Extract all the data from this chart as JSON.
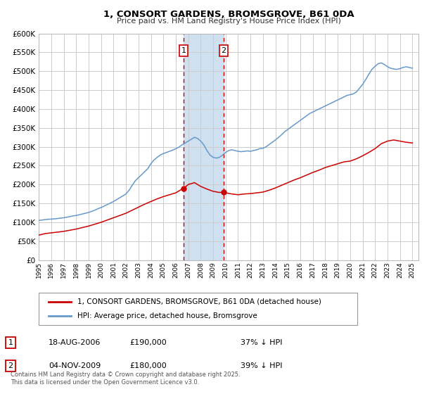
{
  "title": "1, CONSORT GARDENS, BROMSGROVE, B61 0DA",
  "subtitle": "Price paid vs. HM Land Registry's House Price Index (HPI)",
  "legend_label_red": "1, CONSORT GARDENS, BROMSGROVE, B61 0DA (detached house)",
  "legend_label_blue": "HPI: Average price, detached house, Bromsgrove",
  "marker1_date_label": "18-AUG-2006",
  "marker1_price": 190000,
  "marker1_pct": "37% ↓ HPI",
  "marker2_date_label": "04-NOV-2009",
  "marker2_price": 180000,
  "marker2_pct": "39% ↓ HPI",
  "marker1_year": 2006.63,
  "marker2_year": 2009.84,
  "ylim_max": 600000,
  "ylim_min": 0,
  "xlim_min": 1995,
  "xlim_max": 2025.5,
  "red_color": "#cc0000",
  "blue_color": "#6699cc",
  "shade_color": "#cfe0f0",
  "grid_color": "#cccccc",
  "footer_text": "Contains HM Land Registry data © Crown copyright and database right 2025.\nThis data is licensed under the Open Government Licence v3.0.",
  "hpi_data": [
    [
      1995.0,
      105000
    ],
    [
      1995.25,
      106000
    ],
    [
      1995.5,
      107000
    ],
    [
      1995.75,
      108000
    ],
    [
      1996.0,
      108500
    ],
    [
      1996.25,
      109000
    ],
    [
      1996.5,
      110000
    ],
    [
      1996.75,
      111000
    ],
    [
      1997.0,
      112000
    ],
    [
      1997.25,
      113500
    ],
    [
      1997.5,
      115000
    ],
    [
      1997.75,
      117000
    ],
    [
      1998.0,
      118000
    ],
    [
      1998.25,
      120000
    ],
    [
      1998.5,
      122000
    ],
    [
      1998.75,
      124000
    ],
    [
      1999.0,
      126000
    ],
    [
      1999.25,
      129000
    ],
    [
      1999.5,
      132000
    ],
    [
      1999.75,
      136000
    ],
    [
      2000.0,
      139000
    ],
    [
      2000.25,
      143000
    ],
    [
      2000.5,
      147000
    ],
    [
      2000.75,
      151000
    ],
    [
      2001.0,
      155000
    ],
    [
      2001.25,
      160000
    ],
    [
      2001.5,
      165000
    ],
    [
      2001.75,
      170000
    ],
    [
      2002.0,
      175000
    ],
    [
      2002.25,
      185000
    ],
    [
      2002.5,
      198000
    ],
    [
      2002.75,
      210000
    ],
    [
      2003.0,
      218000
    ],
    [
      2003.25,
      226000
    ],
    [
      2003.5,
      234000
    ],
    [
      2003.75,
      242000
    ],
    [
      2004.0,
      255000
    ],
    [
      2004.25,
      265000
    ],
    [
      2004.5,
      272000
    ],
    [
      2004.75,
      278000
    ],
    [
      2005.0,
      282000
    ],
    [
      2005.25,
      285000
    ],
    [
      2005.5,
      288000
    ],
    [
      2005.75,
      291000
    ],
    [
      2006.0,
      295000
    ],
    [
      2006.25,
      299000
    ],
    [
      2006.5,
      305000
    ],
    [
      2006.75,
      310000
    ],
    [
      2007.0,
      315000
    ],
    [
      2007.25,
      320000
    ],
    [
      2007.5,
      325000
    ],
    [
      2007.75,
      322000
    ],
    [
      2008.0,
      315000
    ],
    [
      2008.25,
      305000
    ],
    [
      2008.5,
      290000
    ],
    [
      2008.75,
      278000
    ],
    [
      2009.0,
      272000
    ],
    [
      2009.25,
      270000
    ],
    [
      2009.5,
      272000
    ],
    [
      2009.75,
      278000
    ],
    [
      2010.0,
      285000
    ],
    [
      2010.25,
      290000
    ],
    [
      2010.5,
      292000
    ],
    [
      2010.75,
      290000
    ],
    [
      2011.0,
      288000
    ],
    [
      2011.25,
      287000
    ],
    [
      2011.5,
      288000
    ],
    [
      2011.75,
      289000
    ],
    [
      2012.0,
      288000
    ],
    [
      2012.25,
      290000
    ],
    [
      2012.5,
      292000
    ],
    [
      2012.75,
      295000
    ],
    [
      2013.0,
      296000
    ],
    [
      2013.25,
      300000
    ],
    [
      2013.5,
      306000
    ],
    [
      2013.75,
      312000
    ],
    [
      2014.0,
      318000
    ],
    [
      2014.25,
      325000
    ],
    [
      2014.5,
      332000
    ],
    [
      2014.75,
      340000
    ],
    [
      2015.0,
      346000
    ],
    [
      2015.25,
      352000
    ],
    [
      2015.5,
      358000
    ],
    [
      2015.75,
      364000
    ],
    [
      2016.0,
      370000
    ],
    [
      2016.25,
      376000
    ],
    [
      2016.5,
      382000
    ],
    [
      2016.75,
      388000
    ],
    [
      2017.0,
      392000
    ],
    [
      2017.25,
      396000
    ],
    [
      2017.5,
      400000
    ],
    [
      2017.75,
      404000
    ],
    [
      2018.0,
      408000
    ],
    [
      2018.25,
      412000
    ],
    [
      2018.5,
      416000
    ],
    [
      2018.75,
      420000
    ],
    [
      2019.0,
      424000
    ],
    [
      2019.25,
      428000
    ],
    [
      2019.5,
      432000
    ],
    [
      2019.75,
      436000
    ],
    [
      2020.0,
      438000
    ],
    [
      2020.25,
      440000
    ],
    [
      2020.5,
      445000
    ],
    [
      2020.75,
      455000
    ],
    [
      2021.0,
      465000
    ],
    [
      2021.25,
      478000
    ],
    [
      2021.5,
      492000
    ],
    [
      2021.75,
      505000
    ],
    [
      2022.0,
      513000
    ],
    [
      2022.25,
      520000
    ],
    [
      2022.5,
      522000
    ],
    [
      2022.75,
      518000
    ],
    [
      2023.0,
      512000
    ],
    [
      2023.25,
      508000
    ],
    [
      2023.5,
      506000
    ],
    [
      2023.75,
      505000
    ],
    [
      2024.0,
      507000
    ],
    [
      2024.25,
      510000
    ],
    [
      2024.5,
      512000
    ],
    [
      2024.75,
      510000
    ],
    [
      2025.0,
      508000
    ]
  ],
  "price_data": [
    [
      1995.0,
      66000
    ],
    [
      1995.5,
      70000
    ],
    [
      1996.0,
      72000
    ],
    [
      1996.5,
      74000
    ],
    [
      1997.0,
      76000
    ],
    [
      1997.5,
      79000
    ],
    [
      1998.0,
      82000
    ],
    [
      1998.5,
      86000
    ],
    [
      1999.0,
      90000
    ],
    [
      1999.5,
      95000
    ],
    [
      2000.0,
      100000
    ],
    [
      2000.5,
      106000
    ],
    [
      2001.0,
      112000
    ],
    [
      2001.5,
      118000
    ],
    [
      2002.0,
      124000
    ],
    [
      2002.5,
      132000
    ],
    [
      2003.0,
      140000
    ],
    [
      2003.5,
      148000
    ],
    [
      2004.0,
      155000
    ],
    [
      2004.5,
      162000
    ],
    [
      2005.0,
      168000
    ],
    [
      2005.5,
      173000
    ],
    [
      2006.0,
      178000
    ],
    [
      2006.25,
      183000
    ],
    [
      2006.5,
      188000
    ],
    [
      2006.63,
      190000
    ],
    [
      2007.0,
      200000
    ],
    [
      2007.5,
      205000
    ],
    [
      2007.75,
      200000
    ],
    [
      2008.0,
      195000
    ],
    [
      2008.5,
      188000
    ],
    [
      2009.0,
      182000
    ],
    [
      2009.5,
      179000
    ],
    [
      2009.84,
      180000
    ],
    [
      2010.0,
      178000
    ],
    [
      2010.5,
      175000
    ],
    [
      2011.0,
      173000
    ],
    [
      2011.5,
      175000
    ],
    [
      2012.0,
      176000
    ],
    [
      2012.5,
      178000
    ],
    [
      2013.0,
      180000
    ],
    [
      2013.5,
      185000
    ],
    [
      2014.0,
      191000
    ],
    [
      2014.5,
      198000
    ],
    [
      2015.0,
      205000
    ],
    [
      2015.5,
      212000
    ],
    [
      2016.0,
      218000
    ],
    [
      2016.5,
      225000
    ],
    [
      2017.0,
      232000
    ],
    [
      2017.5,
      238000
    ],
    [
      2018.0,
      245000
    ],
    [
      2018.5,
      250000
    ],
    [
      2019.0,
      255000
    ],
    [
      2019.5,
      260000
    ],
    [
      2020.0,
      262000
    ],
    [
      2020.5,
      268000
    ],
    [
      2021.0,
      276000
    ],
    [
      2021.5,
      285000
    ],
    [
      2022.0,
      295000
    ],
    [
      2022.5,
      308000
    ],
    [
      2023.0,
      315000
    ],
    [
      2023.5,
      318000
    ],
    [
      2024.0,
      315000
    ],
    [
      2024.5,
      312000
    ],
    [
      2025.0,
      310000
    ]
  ]
}
